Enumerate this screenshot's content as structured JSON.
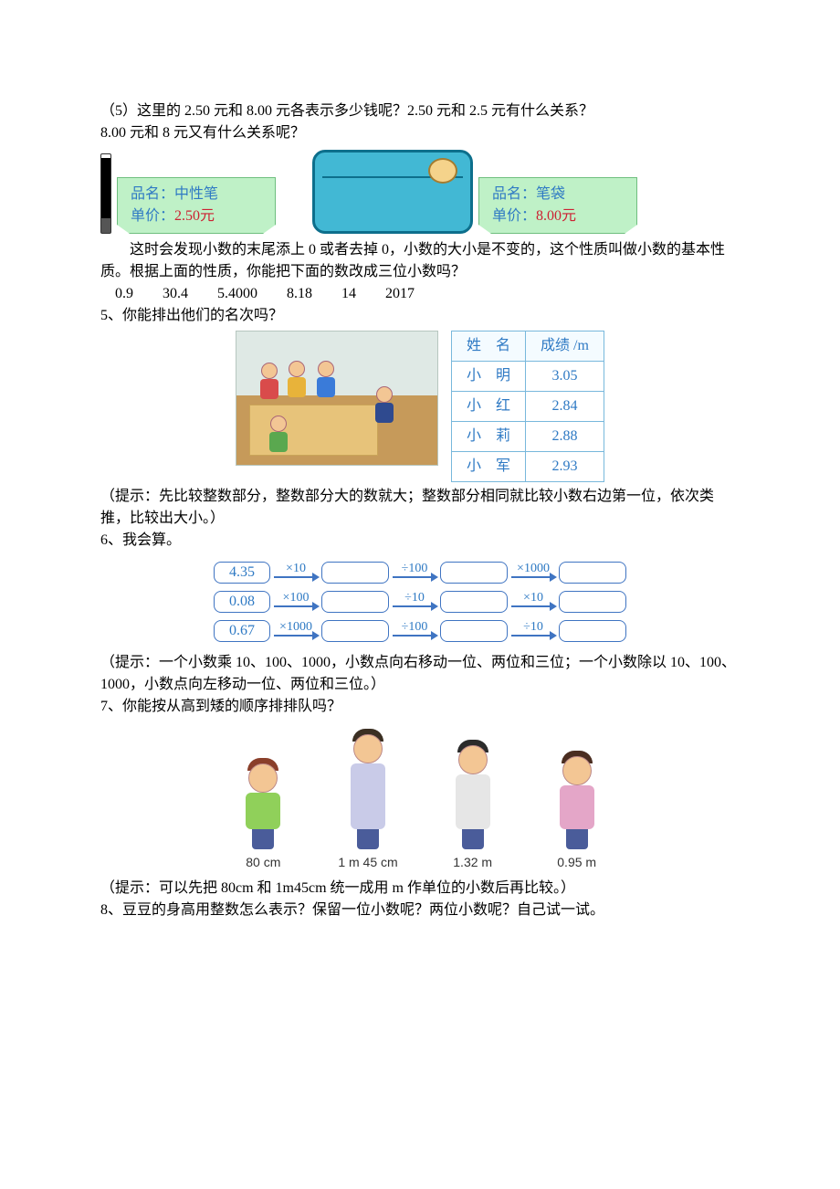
{
  "q5pre": {
    "line1": "（5）这里的 2.50 元和 8.00 元各表示多少钱呢？2.50 元和 2.5 元有什么关系？",
    "line2": "8.00 元和 8 元又有什么关系呢？"
  },
  "products": {
    "pen": {
      "name_label": "品名：",
      "name": "中性笔",
      "price_label": "单价：",
      "price": "2.50元"
    },
    "case": {
      "name_label": "品名：",
      "name": "笔袋",
      "price_label": "单价：",
      "price": "8.00元"
    },
    "tag_bg": "#bff1c7",
    "tag_border": "#6fbf7f",
    "text_color": "#2f7ac4",
    "price_color": "#c23"
  },
  "explain": {
    "p1": "这时会发现小数的末尾添上 0 或者去掉 0，小数的大小是不变的，这个性质叫做小数的基本性质。根据上面的性质，你能把下面的数改成三位小数吗？",
    "nums": "0.9　　30.4　　5.4000　　8.18　　14　　2017"
  },
  "q5": "5、你能排出他们的名次吗？",
  "score_table": {
    "headers": [
      "姓　名",
      "成绩 /m"
    ],
    "rows": [
      [
        "小　明",
        "3.05"
      ],
      [
        "小　红",
        "2.84"
      ],
      [
        "小　莉",
        "2.88"
      ],
      [
        "小　军",
        "2.93"
      ]
    ],
    "border_color": "#78b8dc"
  },
  "hint5": "（提示：先比较整数部分，整数部分大的数就大；整数部分相同就比较小数右边第一位，依次类推，比较出大小。）",
  "q6": "6、我会算。",
  "chain": {
    "start": [
      "4.35",
      "0.08",
      "0.67"
    ],
    "ops": [
      [
        "×10",
        "×100",
        "×1000"
      ],
      [
        "÷100",
        "÷10",
        "÷100"
      ],
      [
        "×1000",
        "×10",
        "÷10"
      ]
    ],
    "box_border": "#3f74c2",
    "text_color": "#2f7ac4"
  },
  "hint6": "（提示：一个小数乘 10、100、1000，小数点向右移动一位、两位和三位；一个小数除以 10、100、1000，小数点向左移动一位、两位和三位。）",
  "q7": "7、你能按从高到矮的顺序排排队吗？",
  "heights": {
    "labels": [
      "80 cm",
      "1 m 45 cm",
      "1.32 m",
      "0.95 m"
    ]
  },
  "hint7": "（提示：可以先把 80cm 和 1m45cm 统一成用 m 作单位的小数后再比较。）",
  "q8": "8、豆豆的身高用整数怎么表示？保留一位小数呢？两位小数呢？自己试一试。"
}
